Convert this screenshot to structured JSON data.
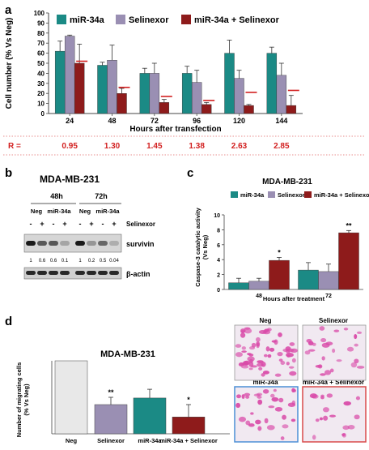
{
  "figure": {
    "panel_letters": [
      "a",
      "b",
      "c",
      "d"
    ]
  },
  "colors": {
    "mir34a": "#1b8a85",
    "selinexor": "#9a8fb3",
    "combo": "#8e1b1b",
    "neg": "#e8e8e8",
    "ratio_red": "#d21f1f",
    "blot_dark": "#1a1a1a",
    "stain_pink": "#d94aa8",
    "frame_blue": "#4c8fd6",
    "frame_red": "#d94a4a"
  },
  "panel_a": {
    "r_label": "R =",
    "r_values": [
      "0.95",
      "1.30",
      "1.45",
      "1.38",
      "2.63",
      "2.85"
    ]
  },
  "panel_b": {
    "title": "MDA-MB-231",
    "time_labels": [
      "48h",
      "72h"
    ],
    "group_labels": [
      "Neg",
      "miR-34a",
      "Neg",
      "miR-34a"
    ],
    "selinexor_label": "Selinexor",
    "signs": [
      "-",
      "+",
      "-",
      "+",
      "-",
      "+",
      "-",
      "+"
    ],
    "survivin_label": "survivin",
    "actin_label": "β-actin",
    "quant": [
      "1",
      "0.6",
      "0.6",
      "0.1",
      "1",
      "0.2",
      "0.5",
      "0.04"
    ]
  },
  "panel_d": {
    "image_labels": [
      "Neg",
      "Selinexor",
      "miR-34a",
      "miR-34a + Selinexor"
    ]
  },
  "chart_data": [
    {
      "type": "bar",
      "title": "",
      "xlabel": "Hours after transfection",
      "ylabel": "Cell number (% Vs Neg)",
      "ylim": [
        0,
        100
      ],
      "yticks": [
        0,
        10,
        20,
        30,
        40,
        50,
        60,
        70,
        80,
        90,
        100
      ],
      "legend": "top",
      "categories": [
        "24",
        "48",
        "72",
        "96",
        "120",
        "144"
      ],
      "series": [
        {
          "name": "miR-34a",
          "values": [
            62,
            48,
            40,
            40,
            60,
            60
          ],
          "errors": [
            10,
            3,
            5,
            7,
            13,
            6
          ]
        },
        {
          "name": "Selinexor",
          "values": [
            77,
            53,
            40,
            31,
            35,
            38
          ],
          "errors": [
            1,
            15,
            10,
            12,
            8,
            12
          ]
        },
        {
          "name": "miR-34a + Selinexor",
          "values": [
            50,
            20,
            11,
            9,
            8,
            8
          ],
          "errors": [
            19,
            5,
            3,
            2,
            1,
            10
          ]
        }
      ],
      "predicted_additive": [
        52,
        26,
        17,
        13,
        21,
        23
      ]
    },
    {
      "type": "bar",
      "title": "MDA-MB-231",
      "xlabel": "Hours after treatment",
      "ylabel": "Caspase-3 catalytic activity (Vs Neg)",
      "ylim": [
        0,
        10
      ],
      "yticks": [
        0,
        2,
        4,
        6,
        8,
        10
      ],
      "legend": "top",
      "categories": [
        "48",
        "72"
      ],
      "series": [
        {
          "name": "miR-34a",
          "values": [
            0.9,
            2.6
          ],
          "errors": [
            0.6,
            1.0
          ]
        },
        {
          "name": "Selinexor",
          "values": [
            1.1,
            2.4
          ],
          "errors": [
            0.4,
            1.0
          ]
        },
        {
          "name": "miR-34a + Selinexor",
          "values": [
            3.9,
            7.6
          ],
          "errors": [
            0.4,
            0.3
          ]
        }
      ],
      "significance": [
        {
          "category": "48",
          "series": "miR-34a + Selinexor",
          "label": "*"
        },
        {
          "category": "72",
          "series": "miR-34a + Selinexor",
          "label": "**"
        }
      ]
    },
    {
      "type": "bar",
      "title": "MDA-MB-231",
      "xlabel": "",
      "ylabel": "Number of migrating cells (% Vs Neg)",
      "ylim": [
        0,
        100
      ],
      "categories": [
        "Neg",
        "Selinexor",
        "miR-34a",
        "miR-34a + Selinexor"
      ],
      "values": [
        100,
        40,
        49,
        23
      ],
      "errors": [
        0,
        10,
        12,
        17
      ],
      "significance": [
        "",
        "**",
        "",
        "*"
      ]
    }
  ]
}
